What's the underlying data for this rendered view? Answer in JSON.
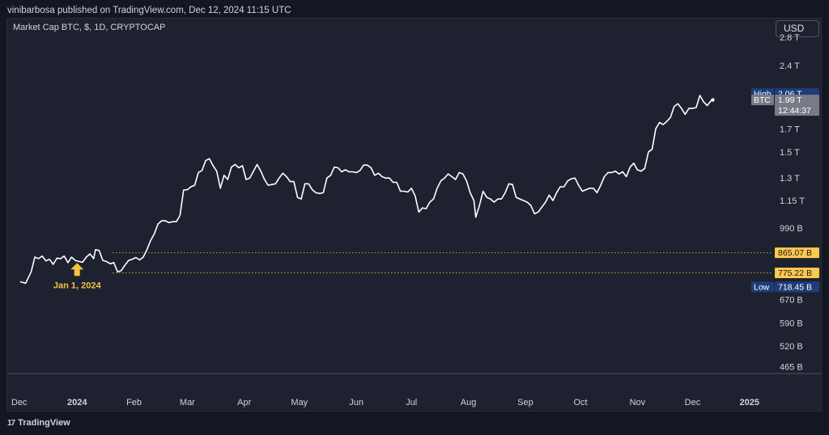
{
  "header": {
    "publisher_line": "vinibarbosa published on TradingView.com, Dec 12, 2024 11:15 UTC"
  },
  "chart": {
    "symbol_title": "Market Cap BTC, $, 1D, CRYPTOCAP",
    "currency_button": "USD"
  },
  "footer": {
    "brand_mark": "17",
    "brand_name": "TradingView"
  },
  "chart_data": {
    "type": "line",
    "series": [
      {
        "name": "BTC",
        "color": "#ffffff",
        "points": [
          [
            "2023-12-01",
            739
          ],
          [
            "2023-12-04",
            733
          ],
          [
            "2023-12-07",
            780
          ],
          [
            "2023-12-09",
            845
          ],
          [
            "2023-12-11",
            838
          ],
          [
            "2023-12-13",
            850
          ],
          [
            "2023-12-15",
            828
          ],
          [
            "2023-12-17",
            835
          ],
          [
            "2023-12-19",
            812
          ],
          [
            "2023-12-21",
            840
          ],
          [
            "2023-12-23",
            838
          ],
          [
            "2023-12-25",
            850
          ],
          [
            "2023-12-27",
            820
          ],
          [
            "2023-12-29",
            845
          ],
          [
            "2023-12-31",
            830
          ],
          [
            "2024-01-02",
            825
          ],
          [
            "2024-01-04",
            822
          ],
          [
            "2024-01-06",
            845
          ],
          [
            "2024-01-08",
            860
          ],
          [
            "2024-01-10",
            838
          ],
          [
            "2024-01-11",
            880
          ],
          [
            "2024-01-13",
            876
          ],
          [
            "2024-01-15",
            830
          ],
          [
            "2024-01-17",
            825
          ],
          [
            "2024-01-19",
            815
          ],
          [
            "2024-01-21",
            820
          ],
          [
            "2024-01-23",
            780
          ],
          [
            "2024-01-25",
            785
          ],
          [
            "2024-01-27",
            808
          ],
          [
            "2024-01-29",
            830
          ],
          [
            "2024-01-31",
            835
          ],
          [
            "2024-02-02",
            843
          ],
          [
            "2024-02-04",
            832
          ],
          [
            "2024-02-06",
            845
          ],
          [
            "2024-02-08",
            880
          ],
          [
            "2024-02-10",
            925
          ],
          [
            "2024-02-12",
            958
          ],
          [
            "2024-02-14",
            1012
          ],
          [
            "2024-02-16",
            1030
          ],
          [
            "2024-02-18",
            1030
          ],
          [
            "2024-02-20",
            1020
          ],
          [
            "2024-02-22",
            1025
          ],
          [
            "2024-02-24",
            1025
          ],
          [
            "2024-02-26",
            1060
          ],
          [
            "2024-02-28",
            1218
          ],
          [
            "2024-03-01",
            1220
          ],
          [
            "2024-03-03",
            1240
          ],
          [
            "2024-03-05",
            1250
          ],
          [
            "2024-03-07",
            1340
          ],
          [
            "2024-03-09",
            1355
          ],
          [
            "2024-03-11",
            1430
          ],
          [
            "2024-03-13",
            1445
          ],
          [
            "2024-03-15",
            1390
          ],
          [
            "2024-03-17",
            1350
          ],
          [
            "2024-03-19",
            1230
          ],
          [
            "2024-03-21",
            1320
          ],
          [
            "2024-03-23",
            1290
          ],
          [
            "2024-03-25",
            1380
          ],
          [
            "2024-03-27",
            1400
          ],
          [
            "2024-03-29",
            1375
          ],
          [
            "2024-03-31",
            1390
          ],
          [
            "2024-04-02",
            1290
          ],
          [
            "2024-04-04",
            1300
          ],
          [
            "2024-04-06",
            1350
          ],
          [
            "2024-04-08",
            1400
          ],
          [
            "2024-04-10",
            1350
          ],
          [
            "2024-04-12",
            1290
          ],
          [
            "2024-04-14",
            1250
          ],
          [
            "2024-04-16",
            1255
          ],
          [
            "2024-04-18",
            1260
          ],
          [
            "2024-04-20",
            1300
          ],
          [
            "2024-04-22",
            1335
          ],
          [
            "2024-04-24",
            1310
          ],
          [
            "2024-04-26",
            1275
          ],
          [
            "2024-04-28",
            1275
          ],
          [
            "2024-04-30",
            1170
          ],
          [
            "2024-05-02",
            1160
          ],
          [
            "2024-05-04",
            1260
          ],
          [
            "2024-05-06",
            1260
          ],
          [
            "2024-05-08",
            1220
          ],
          [
            "2024-05-10",
            1200
          ],
          [
            "2024-05-12",
            1195
          ],
          [
            "2024-05-14",
            1200
          ],
          [
            "2024-05-16",
            1300
          ],
          [
            "2024-05-18",
            1320
          ],
          [
            "2024-05-20",
            1380
          ],
          [
            "2024-05-22",
            1375
          ],
          [
            "2024-05-24",
            1345
          ],
          [
            "2024-05-26",
            1360
          ],
          [
            "2024-05-28",
            1345
          ],
          [
            "2024-05-30",
            1345
          ],
          [
            "2024-06-01",
            1340
          ],
          [
            "2024-06-03",
            1355
          ],
          [
            "2024-06-05",
            1395
          ],
          [
            "2024-06-07",
            1395
          ],
          [
            "2024-06-09",
            1375
          ],
          [
            "2024-06-11",
            1320
          ],
          [
            "2024-06-13",
            1335
          ],
          [
            "2024-06-15",
            1310
          ],
          [
            "2024-06-17",
            1300
          ],
          [
            "2024-06-19",
            1300
          ],
          [
            "2024-06-21",
            1270
          ],
          [
            "2024-06-23",
            1270
          ],
          [
            "2024-06-25",
            1210
          ],
          [
            "2024-06-27",
            1210
          ],
          [
            "2024-06-29",
            1205
          ],
          [
            "2024-07-01",
            1230
          ],
          [
            "2024-07-03",
            1180
          ],
          [
            "2024-07-05",
            1080
          ],
          [
            "2024-07-07",
            1105
          ],
          [
            "2024-07-09",
            1100
          ],
          [
            "2024-07-11",
            1140
          ],
          [
            "2024-07-13",
            1160
          ],
          [
            "2024-07-15",
            1230
          ],
          [
            "2024-07-17",
            1280
          ],
          [
            "2024-07-19",
            1300
          ],
          [
            "2024-07-21",
            1330
          ],
          [
            "2024-07-23",
            1310
          ],
          [
            "2024-07-25",
            1290
          ],
          [
            "2024-07-27",
            1340
          ],
          [
            "2024-07-29",
            1330
          ],
          [
            "2024-07-31",
            1280
          ],
          [
            "2024-08-02",
            1200
          ],
          [
            "2024-08-04",
            1150
          ],
          [
            "2024-08-05",
            1050
          ],
          [
            "2024-08-07",
            1120
          ],
          [
            "2024-08-09",
            1210
          ],
          [
            "2024-08-11",
            1170
          ],
          [
            "2024-08-13",
            1160
          ],
          [
            "2024-08-15",
            1140
          ],
          [
            "2024-08-17",
            1160
          ],
          [
            "2024-08-19",
            1160
          ],
          [
            "2024-08-21",
            1200
          ],
          [
            "2024-08-23",
            1260
          ],
          [
            "2024-08-25",
            1255
          ],
          [
            "2024-08-27",
            1170
          ],
          [
            "2024-08-29",
            1160
          ],
          [
            "2024-08-31",
            1150
          ],
          [
            "2024-09-02",
            1140
          ],
          [
            "2024-09-04",
            1120
          ],
          [
            "2024-09-06",
            1070
          ],
          [
            "2024-09-08",
            1080
          ],
          [
            "2024-09-10",
            1110
          ],
          [
            "2024-09-12",
            1140
          ],
          [
            "2024-09-14",
            1185
          ],
          [
            "2024-09-16",
            1150
          ],
          [
            "2024-09-18",
            1200
          ],
          [
            "2024-09-20",
            1240
          ],
          [
            "2024-09-22",
            1240
          ],
          [
            "2024-09-24",
            1280
          ],
          [
            "2024-09-26",
            1295
          ],
          [
            "2024-09-28",
            1300
          ],
          [
            "2024-09-30",
            1250
          ],
          [
            "2024-10-02",
            1210
          ],
          [
            "2024-10-04",
            1220
          ],
          [
            "2024-10-06",
            1230
          ],
          [
            "2024-10-08",
            1230
          ],
          [
            "2024-10-10",
            1200
          ],
          [
            "2024-10-12",
            1250
          ],
          [
            "2024-10-14",
            1310
          ],
          [
            "2024-10-16",
            1340
          ],
          [
            "2024-10-18",
            1340
          ],
          [
            "2024-10-20",
            1350
          ],
          [
            "2024-10-22",
            1330
          ],
          [
            "2024-10-24",
            1345
          ],
          [
            "2024-10-26",
            1310
          ],
          [
            "2024-10-28",
            1380
          ],
          [
            "2024-10-30",
            1410
          ],
          [
            "2024-11-01",
            1360
          ],
          [
            "2024-11-03",
            1350
          ],
          [
            "2024-11-05",
            1370
          ],
          [
            "2024-11-07",
            1500
          ],
          [
            "2024-11-09",
            1520
          ],
          [
            "2024-11-11",
            1700
          ],
          [
            "2024-11-13",
            1760
          ],
          [
            "2024-11-15",
            1740
          ],
          [
            "2024-11-17",
            1770
          ],
          [
            "2024-11-19",
            1810
          ],
          [
            "2024-11-21",
            1920
          ],
          [
            "2024-11-23",
            1950
          ],
          [
            "2024-11-25",
            1900
          ],
          [
            "2024-11-27",
            1840
          ],
          [
            "2024-11-29",
            1900
          ],
          [
            "2024-12-01",
            1900
          ],
          [
            "2024-12-03",
            1910
          ],
          [
            "2024-12-05",
            2040
          ],
          [
            "2024-12-07",
            1970
          ],
          [
            "2024-12-09",
            1930
          ],
          [
            "2024-12-11",
            1980
          ],
          [
            "2024-12-12",
            1990
          ]
        ]
      }
    ],
    "y_axis": {
      "scale": "log",
      "unit": "B",
      "ticks": [
        {
          "value": 465,
          "label": "465 B"
        },
        {
          "value": 520,
          "label": "520 B"
        },
        {
          "value": 590,
          "label": "590 B"
        },
        {
          "value": 670,
          "label": "670 B"
        },
        {
          "value": 990,
          "label": "990 B"
        },
        {
          "value": 1150,
          "label": "1.15 T"
        },
        {
          "value": 1300,
          "label": "1.3 T"
        },
        {
          "value": 1500,
          "label": "1.5 T"
        },
        {
          "value": 1700,
          "label": "1.7 T"
        },
        {
          "value": 2400,
          "label": "2.4 T"
        },
        {
          "value": 2800,
          "label": "2.8 T"
        }
      ],
      "range": [
        450,
        3100
      ]
    },
    "x_axis": {
      "range": [
        "2023-11-24",
        "2025-01-13"
      ],
      "ticks": [
        {
          "date": "2023-12-01",
          "label": "Dec",
          "bold": false
        },
        {
          "date": "2024-01-01",
          "label": "2024",
          "bold": true
        },
        {
          "date": "2024-02-01",
          "label": "Feb",
          "bold": false
        },
        {
          "date": "2024-03-01",
          "label": "Mar",
          "bold": false
        },
        {
          "date": "2024-04-01",
          "label": "Apr",
          "bold": false
        },
        {
          "date": "2024-05-01",
          "label": "May",
          "bold": false
        },
        {
          "date": "2024-06-01",
          "label": "Jun",
          "bold": false
        },
        {
          "date": "2024-07-01",
          "label": "Jul",
          "bold": false
        },
        {
          "date": "2024-08-01",
          "label": "Aug",
          "bold": false
        },
        {
          "date": "2024-09-01",
          "label": "Sep",
          "bold": false
        },
        {
          "date": "2024-10-01",
          "label": "Oct",
          "bold": false
        },
        {
          "date": "2024-11-01",
          "label": "Nov",
          "bold": false
        },
        {
          "date": "2024-12-01",
          "label": "Dec",
          "bold": false
        },
        {
          "date": "2025-01-01",
          "label": "2025",
          "bold": true
        }
      ]
    },
    "price_labels": [
      {
        "value": 2060,
        "tag": "High",
        "label": "2.06 T",
        "bg": "#1e3d79"
      },
      {
        "value": 1990,
        "tag": "BTC",
        "label": "1.99 T",
        "sublabel": "12:44:37",
        "bg": "#787b86"
      },
      {
        "value": 865.07,
        "tag": "",
        "label": "865.07 B",
        "bg": "#ffc94d"
      },
      {
        "value": 775.22,
        "tag": "",
        "label": "775.22 B",
        "bg": "#ffc94d"
      },
      {
        "value": 718.45,
        "tag": "Low",
        "label": "718.45 B",
        "bg": "#1e3d79"
      }
    ],
    "horizontal_lines": [
      {
        "value": 865.07,
        "color": "#c9a23a",
        "style": "dotted"
      },
      {
        "value": 775.22,
        "color": "#c9a23a",
        "style": "dotted"
      }
    ],
    "annotations": [
      {
        "type": "arrow-up",
        "date": "2024-01-01",
        "value": 790,
        "label": "Jan 1, 2024",
        "color": "#f5c242"
      }
    ],
    "grid": false,
    "legend": "none"
  }
}
